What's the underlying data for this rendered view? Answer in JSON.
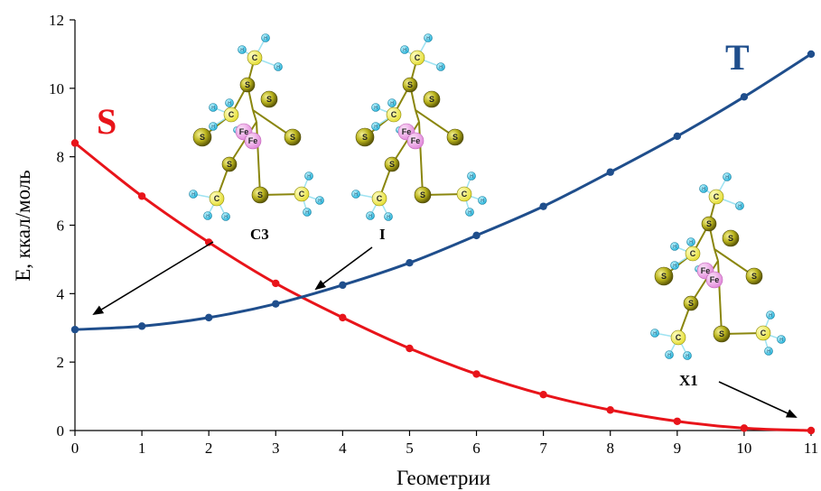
{
  "chart_data": {
    "type": "line",
    "xlabel": "Геометрии",
    "ylabel": "E, ккал/моль",
    "x": [
      0,
      1,
      2,
      3,
      4,
      5,
      6,
      7,
      8,
      9,
      10,
      11
    ],
    "xlim": [
      0,
      11
    ],
    "ylim": [
      0,
      12
    ],
    "xticks": [
      "0",
      "1",
      "2",
      "3",
      "4",
      "5",
      "6",
      "7",
      "8",
      "9",
      "10",
      "11"
    ],
    "yticks": [
      "0",
      "2",
      "4",
      "6",
      "8",
      "10",
      "12"
    ],
    "grid": false,
    "series": [
      {
        "name": "S",
        "color": "#e8141a",
        "values": [
          8.4,
          6.85,
          5.5,
          4.3,
          3.3,
          2.4,
          1.65,
          1.05,
          0.6,
          0.27,
          0.07,
          0.0
        ]
      },
      {
        "name": "T",
        "color": "#1f4e8c",
        "values": [
          2.95,
          3.05,
          3.3,
          3.7,
          4.25,
          4.9,
          5.7,
          6.55,
          7.55,
          8.6,
          9.75,
          11.0
        ]
      }
    ],
    "annotations": [
      {
        "label": "C3",
        "points_to": [
          0.2,
          3.4
        ]
      },
      {
        "label": "I",
        "points_to": [
          3.6,
          4.15
        ]
      },
      {
        "label": "X1",
        "points_to": [
          10.8,
          0.3
        ]
      }
    ],
    "molecule_atom_labels": [
      "Fe",
      "Fe",
      "S",
      "C",
      "H"
    ]
  }
}
